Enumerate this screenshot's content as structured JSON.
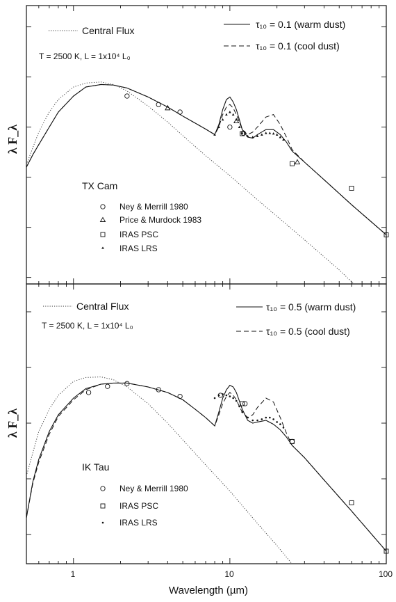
{
  "chart_data": [
    {
      "type": "line",
      "panel": "top",
      "xscale": "log",
      "yscale": "log",
      "xlim": [
        0.5,
        100
      ],
      "ylabel": "λ F_λ",
      "star_label": "TX Cam",
      "params_label": "T = 2500 K,  L = 1x10⁴ L₀",
      "legend_top_left": "Central Flux",
      "legend_top_right": [
        "τ₁₀ = 0.1  (warm dust)",
        "τ₁₀ = 0.1  (cool dust)"
      ],
      "legend_markers": [
        "Ney & Merrill 1980",
        "Price & Murdock 1983",
        "IRAS PSC",
        "IRAS LRS"
      ],
      "series": [
        {
          "name": "Central Flux",
          "style": "dotted",
          "x": [
            0.5,
            0.6,
            0.7,
            0.8,
            1.0,
            1.2,
            1.5,
            1.8,
            2.2,
            3,
            4,
            5,
            7,
            10,
            15,
            20,
            30,
            50,
            100
          ],
          "y": [
            1.25,
            1.9,
            2.3,
            2.55,
            2.8,
            2.88,
            2.9,
            2.85,
            2.72,
            2.42,
            2.1,
            1.83,
            1.43,
            1.03,
            0.55,
            0.22,
            -0.25,
            -0.85,
            -1.75
          ]
        },
        {
          "name": "warm dust",
          "style": "solid",
          "x": [
            0.5,
            0.55,
            0.6,
            0.7,
            0.8,
            1.0,
            1.2,
            1.5,
            1.8,
            2.2,
            3,
            4,
            5,
            6,
            7,
            8,
            8.5,
            9,
            9.5,
            10,
            10.5,
            11,
            11.5,
            12,
            13,
            14,
            15,
            17,
            19,
            21,
            23,
            25,
            30,
            40,
            60,
            100
          ],
          "y": [
            1.2,
            1.45,
            1.65,
            2.0,
            2.3,
            2.62,
            2.8,
            2.85,
            2.84,
            2.78,
            2.6,
            2.4,
            2.22,
            2.08,
            1.96,
            1.85,
            2.05,
            2.35,
            2.55,
            2.6,
            2.5,
            2.35,
            2.15,
            1.95,
            1.8,
            1.78,
            1.85,
            1.95,
            1.95,
            1.85,
            1.7,
            1.52,
            1.3,
            0.95,
            0.45,
            -0.15
          ]
        },
        {
          "name": "cool dust",
          "style": "dashed",
          "x": [
            0.5,
            0.55,
            0.6,
            0.7,
            0.8,
            1.0,
            1.2,
            1.5,
            1.8,
            2.2,
            3,
            4,
            5,
            6,
            7,
            8,
            8.5,
            9,
            9.5,
            10,
            10.5,
            11,
            11.5,
            12,
            13,
            14,
            15,
            17,
            19,
            21,
            23,
            25,
            30,
            40,
            60,
            100
          ],
          "y": [
            1.2,
            1.45,
            1.65,
            2.0,
            2.3,
            2.62,
            2.8,
            2.85,
            2.84,
            2.78,
            2.6,
            2.4,
            2.22,
            2.08,
            1.96,
            1.85,
            2.0,
            2.25,
            2.4,
            2.45,
            2.38,
            2.25,
            2.1,
            1.95,
            1.85,
            1.9,
            2.0,
            2.2,
            2.25,
            2.05,
            1.8,
            1.55,
            1.3,
            0.95,
            0.45,
            -0.15
          ]
        }
      ],
      "points": {
        "Ney & Merrill 1980": {
          "x": [
            2.2,
            3.5,
            4.8,
            10,
            12.2
          ],
          "y": [
            2.62,
            2.45,
            2.3,
            2.0,
            1.88
          ]
        },
        "Price & Murdock 1983": {
          "x": [
            4.0,
            11.0,
            27
          ],
          "y": [
            2.38,
            2.12,
            1.3
          ]
        },
        "IRAS PSC": {
          "x": [
            12,
            25,
            60,
            100
          ],
          "y": [
            1.87,
            1.27,
            0.78,
            -0.15
          ]
        },
        "IRAS LRS": {
          "x": [
            8,
            8.5,
            9,
            9.5,
            10,
            10.5,
            11,
            11.5,
            12,
            13,
            14,
            15,
            16,
            17,
            18,
            19,
            20,
            21,
            22
          ],
          "y": [
            1.85,
            2.0,
            2.15,
            2.25,
            2.3,
            2.25,
            2.15,
            2.0,
            1.88,
            1.82,
            1.8,
            1.82,
            1.85,
            1.88,
            1.88,
            1.87,
            1.85,
            1.8,
            1.75
          ]
        }
      }
    },
    {
      "type": "line",
      "panel": "bottom",
      "xscale": "log",
      "yscale": "log",
      "xlim": [
        0.5,
        100
      ],
      "xticks": [
        "1",
        "10",
        "100"
      ],
      "xlabel": "Wavelength (µm)",
      "ylabel": "λ F_λ",
      "star_label": "IK Tau",
      "params_label": "T = 2500 K,  L = 1x10⁴ L₀",
      "legend_top_left": "Central Flux",
      "legend_top_right": [
        "τ₁₀ = 0.5  (warm dust)",
        "τ₁₀ = 0.5  (cool dust)"
      ],
      "legend_markers": [
        "Ney & Merrill 1980",
        "IRAS PSC",
        "IRAS LRS"
      ],
      "series": [
        {
          "name": "Central Flux",
          "style": "dotted",
          "x": [
            0.5,
            0.6,
            0.7,
            0.8,
            1.0,
            1.2,
            1.5,
            1.8,
            2.2,
            3,
            4,
            5,
            7,
            10,
            15,
            20,
            30,
            40
          ],
          "y": [
            1.05,
            1.85,
            2.25,
            2.5,
            2.75,
            2.82,
            2.83,
            2.78,
            2.65,
            2.35,
            2.0,
            1.7,
            1.25,
            0.78,
            0.2,
            -0.2,
            -0.8,
            -1.25
          ]
        },
        {
          "name": "warm dust",
          "style": "solid",
          "x": [
            0.5,
            0.53,
            0.55,
            0.6,
            0.7,
            0.8,
            1.0,
            1.2,
            1.5,
            1.8,
            2.2,
            3,
            4,
            5,
            6,
            7,
            8,
            8.5,
            9,
            9.5,
            10,
            10.5,
            11,
            11.5,
            12,
            13,
            14,
            15,
            17,
            19,
            21,
            23,
            25,
            30,
            40,
            60,
            100
          ],
          "y": [
            0.3,
            0.7,
            0.95,
            1.35,
            1.85,
            2.15,
            2.45,
            2.62,
            2.7,
            2.72,
            2.72,
            2.65,
            2.55,
            2.42,
            2.25,
            2.1,
            1.95,
            2.2,
            2.45,
            2.6,
            2.68,
            2.65,
            2.55,
            2.4,
            2.25,
            2.05,
            2.0,
            2.02,
            2.05,
            1.98,
            1.88,
            1.75,
            1.6,
            1.38,
            0.98,
            0.42,
            -0.3
          ]
        },
        {
          "name": "cool dust",
          "style": "dashed",
          "x": [
            0.5,
            0.53,
            0.55,
            0.6,
            0.7,
            0.8,
            1.0,
            1.2,
            1.5,
            1.8,
            2.2,
            3,
            4,
            5,
            6,
            7,
            8,
            8.5,
            9,
            9.5,
            10,
            10.5,
            11,
            11.5,
            12,
            13,
            14,
            15,
            17,
            19,
            21,
            23,
            25,
            30,
            40,
            60,
            100
          ],
          "y": [
            0.3,
            0.68,
            0.92,
            1.3,
            1.8,
            2.12,
            2.42,
            2.6,
            2.7,
            2.72,
            2.72,
            2.65,
            2.55,
            2.42,
            2.25,
            2.1,
            1.95,
            2.15,
            2.35,
            2.48,
            2.55,
            2.5,
            2.42,
            2.3,
            2.2,
            2.1,
            2.15,
            2.28,
            2.45,
            2.38,
            2.1,
            1.82,
            1.6,
            1.38,
            0.98,
            0.42,
            -0.3
          ]
        }
      ],
      "points": {
        "Ney & Merrill 1980": {
          "x": [
            1.25,
            1.65,
            2.2,
            3.5,
            4.8,
            8.7,
            12.5,
            25
          ],
          "y": [
            2.55,
            2.66,
            2.71,
            2.6,
            2.48,
            2.5,
            2.35,
            1.67
          ]
        },
        "IRAS PSC": {
          "x": [
            12,
            25,
            60,
            100
          ],
          "y": [
            2.35,
            1.67,
            0.57,
            -0.3
          ]
        },
        "IRAS LRS": {
          "x": [
            8,
            8.5,
            9,
            9.5,
            10,
            10.5,
            11,
            11.5,
            12,
            13,
            14,
            15,
            16,
            17,
            18,
            19,
            20,
            21,
            22
          ],
          "y": [
            2.45,
            2.5,
            2.52,
            2.5,
            2.48,
            2.45,
            2.4,
            2.3,
            2.2,
            2.1,
            2.05,
            2.05,
            2.07,
            2.1,
            2.1,
            2.07,
            2.02,
            1.98,
            1.92
          ]
        }
      }
    }
  ]
}
